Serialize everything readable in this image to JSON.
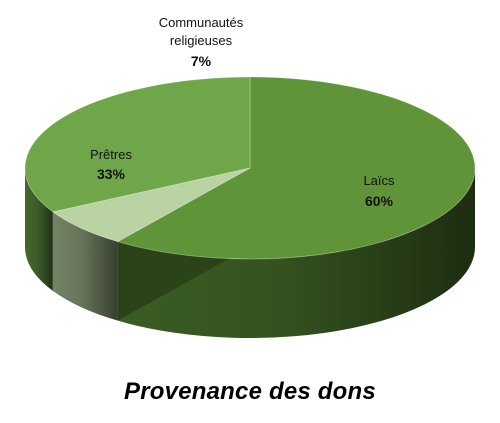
{
  "chart_data": {
    "type": "pie",
    "title": "Provenance des dons",
    "slices": [
      {
        "label": "Laïcs",
        "value": 60,
        "display": "60%",
        "color": "#5f9538"
      },
      {
        "label": "Communautés religieuses",
        "label_lines": [
          "Communautés",
          "religieuses"
        ],
        "value": 7,
        "display": "7%",
        "color": "#b9d3a3"
      },
      {
        "label": "Prêtres",
        "value": 33,
        "display": "33%",
        "color": "#6fa64a"
      }
    ],
    "style": "3d",
    "legend": "none",
    "start_angle_deg": 90,
    "direction": "clockwise"
  }
}
